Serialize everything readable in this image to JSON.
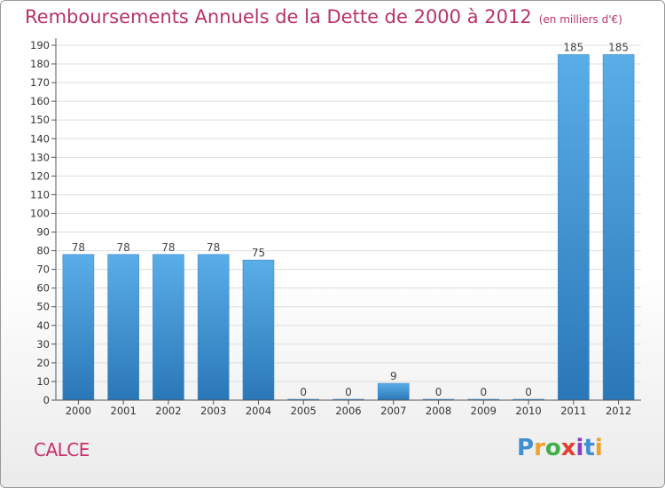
{
  "header": {
    "title": "Remboursements Annuels de la Dette de 2000 à 2012",
    "unit": "(en milliers d'€)"
  },
  "footer": {
    "commune": "CALCE",
    "logo_letters": [
      "P",
      "r",
      "o",
      "x",
      "i",
      "t",
      "i"
    ]
  },
  "colors": {
    "bar_top": "#5aaee8",
    "bar_bottom": "#2a77b8",
    "title": "#b8326a",
    "grid": "#dddddd",
    "axis": "#555555"
  },
  "chart_data": {
    "type": "bar",
    "title": "Remboursements Annuels de la Dette de 2000 à 2012",
    "subtitle": "(en milliers d'€)",
    "xlabel": "",
    "ylabel": "",
    "categories": [
      "2000",
      "2001",
      "2002",
      "2003",
      "2004",
      "2005",
      "2006",
      "2007",
      "2008",
      "2009",
      "2010",
      "2011",
      "2012"
    ],
    "values": [
      78,
      78,
      78,
      78,
      75,
      0,
      0,
      9,
      0,
      0,
      0,
      185,
      185
    ],
    "data_labels": [
      "78",
      "78",
      "78",
      "78",
      "75",
      "0",
      "0",
      "9",
      "0",
      "0",
      "0",
      "185",
      "185"
    ],
    "ylim": [
      0,
      190
    ],
    "yticks": [
      0,
      10,
      20,
      30,
      40,
      50,
      60,
      70,
      80,
      90,
      100,
      110,
      120,
      130,
      140,
      150,
      160,
      170,
      180,
      190
    ],
    "grid": true,
    "legend": "none"
  }
}
